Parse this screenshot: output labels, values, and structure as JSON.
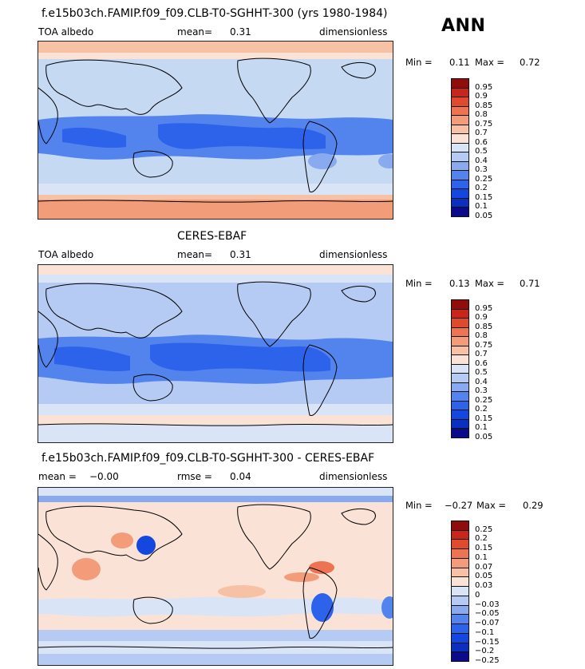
{
  "season": "ANN",
  "palette_abs": [
    "#0a0a8a",
    "#0b2fbf",
    "#1447e0",
    "#2d62ea",
    "#5384ee",
    "#8aaaf0",
    "#b6cbf4",
    "#d9e4f7",
    "#fbe2d6",
    "#f7c1a6",
    "#f29c7a",
    "#ec7451",
    "#e04a2c",
    "#c8261a",
    "#8f0d0a"
  ],
  "palette_diff": [
    "#0a0a8a",
    "#0b2fbf",
    "#1447e0",
    "#2d62ea",
    "#5384ee",
    "#8aaaf0",
    "#b6cbf4",
    "#d9e4f7",
    "#fbe2d6",
    "#f7c1a6",
    "#f29c7a",
    "#ec7451",
    "#e04a2c",
    "#c8261a",
    "#8f0d0a"
  ],
  "panels": [
    {
      "title": "f.e15b03ch.FAMIP.f09_f09.CLB-T0-SGHHT-300 (yrs 1980-1984)",
      "left_label": "TOA albedo",
      "mid_label": "mean=",
      "mid_value": "0.31",
      "right_label": "dimensionless",
      "min_label": "Min =",
      "min_value": "0.11",
      "max_label": "Max =",
      "max_value": "0.72",
      "colorbar_labels": [
        "0.95",
        "0.9",
        "0.85",
        "0.8",
        "0.75",
        "0.7",
        "0.6",
        "0.5",
        "0.4",
        "0.3",
        "0.25",
        "0.2",
        "0.15",
        "0.1",
        "0.05"
      ]
    },
    {
      "title": "CERES-EBAF",
      "left_label": "TOA albedo",
      "mid_label": "mean=",
      "mid_value": "0.31",
      "right_label": "dimensionless",
      "min_label": "Min =",
      "min_value": "0.13",
      "max_label": "Max =",
      "max_value": "0.71",
      "colorbar_labels": [
        "0.95",
        "0.9",
        "0.85",
        "0.8",
        "0.75",
        "0.7",
        "0.6",
        "0.5",
        "0.4",
        "0.3",
        "0.25",
        "0.2",
        "0.15",
        "0.1",
        "0.05"
      ]
    },
    {
      "title": "f.e15b03ch.FAMIP.f09_f09.CLB-T0-SGHHT-300 - CERES-EBAF",
      "left_label": "mean =",
      "left_value": "−0.00",
      "mid_label": "rmse =",
      "mid_value": "0.04",
      "right_label": "dimensionless",
      "min_label": "Min =",
      "min_value": "−0.27",
      "max_label": "Max =",
      "max_value": "0.29",
      "colorbar_labels": [
        "0.25",
        "0.2",
        "0.15",
        "0.1",
        "0.07",
        "0.05",
        "0.03",
        "0",
        "−0.03",
        "−0.05",
        "−0.07",
        "−0.1",
        "−0.15",
        "−0.2",
        "−0.25"
      ]
    }
  ]
}
